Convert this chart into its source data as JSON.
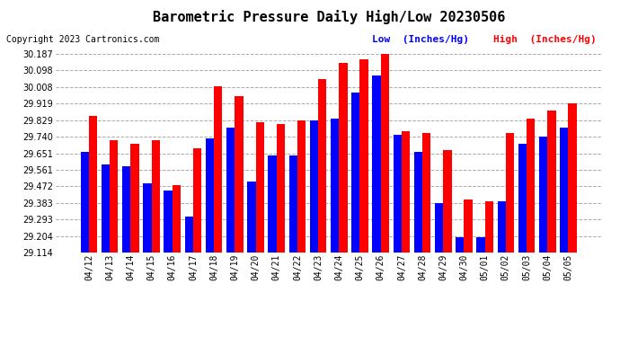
{
  "title": "Barometric Pressure Daily High/Low 20230506",
  "copyright": "Copyright 2023 Cartronics.com",
  "legend_low": "Low  (Inches/Hg)",
  "legend_high": "High  (Inches/Hg)",
  "dates": [
    "04/12",
    "04/13",
    "04/14",
    "04/15",
    "04/16",
    "04/17",
    "04/18",
    "04/19",
    "04/20",
    "04/21",
    "04/22",
    "04/23",
    "04/24",
    "04/25",
    "04/26",
    "04/27",
    "04/28",
    "04/29",
    "04/30",
    "05/01",
    "05/02",
    "05/03",
    "05/04",
    "05/05"
  ],
  "low_values": [
    29.66,
    29.59,
    29.58,
    29.49,
    29.45,
    29.31,
    29.73,
    29.79,
    29.5,
    29.64,
    29.64,
    29.83,
    29.84,
    29.98,
    30.07,
    29.75,
    29.66,
    29.38,
    29.2,
    29.2,
    29.39,
    29.7,
    29.74,
    29.79
  ],
  "high_values": [
    29.85,
    29.72,
    29.7,
    29.72,
    29.48,
    29.68,
    30.01,
    29.96,
    29.82,
    29.81,
    29.83,
    30.05,
    30.14,
    30.16,
    30.19,
    29.77,
    29.76,
    29.67,
    29.4,
    29.39,
    29.76,
    29.84,
    29.88,
    29.92
  ],
  "ylim_min": 29.114,
  "ylim_max": 30.187,
  "yticks": [
    29.114,
    29.204,
    29.293,
    29.383,
    29.472,
    29.561,
    29.651,
    29.74,
    29.829,
    29.919,
    30.008,
    30.098,
    30.187
  ],
  "color_low": "#0000ff",
  "color_high": "#ff0000",
  "background_color": "#ffffff",
  "grid_color": "#aaaaaa",
  "title_fontsize": 11,
  "copyright_fontsize": 7,
  "legend_fontsize": 8,
  "tick_fontsize": 7
}
